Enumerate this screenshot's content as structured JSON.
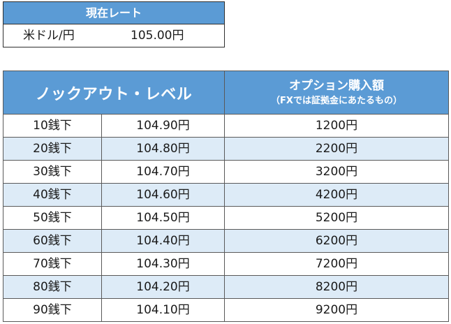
{
  "current_rate": {
    "title": "現在レート",
    "pair": "米ドル/円",
    "value": "105.00円"
  },
  "knockout_table": {
    "header_level": "ノックアウト・レベル",
    "header_option_main": "オプション購入額",
    "header_option_sub": "（FXでは証拠金にあたるもの）",
    "rows": [
      {
        "level": "10銭下",
        "rate": "104.90円",
        "price": "1200円"
      },
      {
        "level": "20銭下",
        "rate": "104.80円",
        "price": "2200円"
      },
      {
        "level": "30銭下",
        "rate": "104.70円",
        "price": "3200円"
      },
      {
        "level": "40銭下",
        "rate": "104.60円",
        "price": "4200円"
      },
      {
        "level": "50銭下",
        "rate": "104.50円",
        "price": "5200円"
      },
      {
        "level": "60銭下",
        "rate": "104.40円",
        "price": "6200円"
      },
      {
        "level": "70銭下",
        "rate": "104.30円",
        "price": "7200円"
      },
      {
        "level": "80銭下",
        "rate": "104.20円",
        "price": "8200円"
      },
      {
        "level": "90銭下",
        "rate": "104.10円",
        "price": "9200円"
      }
    ]
  },
  "colors": {
    "header_bg": "#5b9bd5",
    "stripe_bg": "#ddebf7",
    "border": "#595959"
  }
}
